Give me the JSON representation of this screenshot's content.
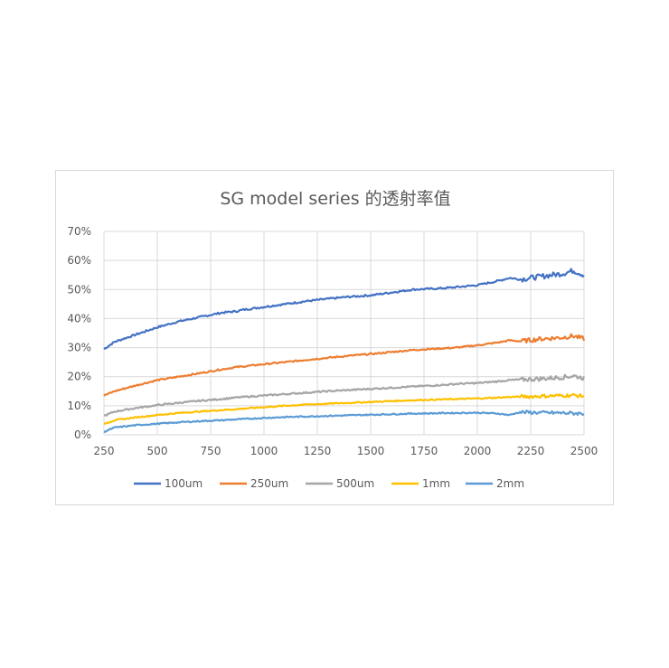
{
  "chart_data": {
    "type": "line",
    "title": "SG model series 的透射率值",
    "xlabel": "",
    "ylabel": "",
    "xlim": [
      250,
      2500
    ],
    "ylim": [
      0,
      70
    ],
    "x_ticks": [
      "250",
      "500",
      "750",
      "1000",
      "1250",
      "1500",
      "1750",
      "2000",
      "2250",
      "2500"
    ],
    "y_ticks": [
      "0%",
      "10%",
      "20%",
      "30%",
      "40%",
      "50%",
      "60%",
      "70%"
    ],
    "grid": true,
    "legend_position": "bottom",
    "x": [
      250,
      300,
      400,
      500,
      600,
      700,
      800,
      870,
      900,
      1000,
      1100,
      1200,
      1300,
      1400,
      1500,
      1600,
      1700,
      1800,
      1850,
      1900,
      2000,
      2100,
      2150,
      2200,
      2300,
      2400,
      2450,
      2500
    ],
    "series": [
      {
        "name": "100um",
        "color": "#4472C4",
        "noise": 0.3,
        "values": [
          29.5,
          32,
          34.5,
          37,
          39,
          40.5,
          42,
          42.5,
          43,
          44,
          45,
          46,
          46.8,
          47.5,
          48,
          49,
          50,
          50.3,
          50.5,
          50.8,
          51.5,
          53,
          54,
          53.5,
          54.5,
          55.5,
          56.5,
          55
        ]
      },
      {
        "name": "250um",
        "color": "#ED7D31",
        "noise": 0.25,
        "values": [
          13.5,
          15,
          17,
          18.8,
          20,
          21.2,
          22.5,
          23.3,
          23.5,
          24.3,
          25,
          25.8,
          26.5,
          27.2,
          27.8,
          28.5,
          29.2,
          29.6,
          29.8,
          30,
          30.8,
          31.8,
          32.5,
          32.2,
          33,
          33.5,
          34,
          33
        ]
      },
      {
        "name": "500um",
        "color": "#A5A5A5",
        "noise": 0.25,
        "values": [
          6.5,
          8,
          9.2,
          10.2,
          11,
          11.7,
          12.3,
          12.8,
          13,
          13.5,
          14,
          14.5,
          15,
          15.4,
          15.8,
          16.2,
          16.6,
          17,
          17.2,
          17.5,
          17.8,
          18.4,
          18.8,
          19,
          19.3,
          19.8,
          20.3,
          19.5
        ]
      },
      {
        "name": "1mm",
        "color": "#FFC000",
        "noise": 0.2,
        "values": [
          3.8,
          5,
          6,
          6.8,
          7.5,
          8,
          8.5,
          8.8,
          9,
          9.5,
          10,
          10.4,
          10.7,
          11,
          11.3,
          11.6,
          11.9,
          12.1,
          12.2,
          12.3,
          12.5,
          12.8,
          13,
          13.1,
          13.3,
          13.5,
          13.6,
          13.3
        ]
      },
      {
        "name": "2mm",
        "color": "#5B9BD5",
        "noise": 0.2,
        "values": [
          1,
          2.5,
          3.3,
          3.8,
          4.3,
          4.7,
          5,
          5.3,
          5.4,
          5.8,
          6.1,
          6.3,
          6.5,
          6.7,
          6.9,
          7.1,
          7.3,
          7.4,
          7.5,
          7.5,
          7.6,
          7.3,
          6.8,
          7.8,
          7.6,
          7.5,
          7.4,
          7.3
        ]
      }
    ]
  }
}
